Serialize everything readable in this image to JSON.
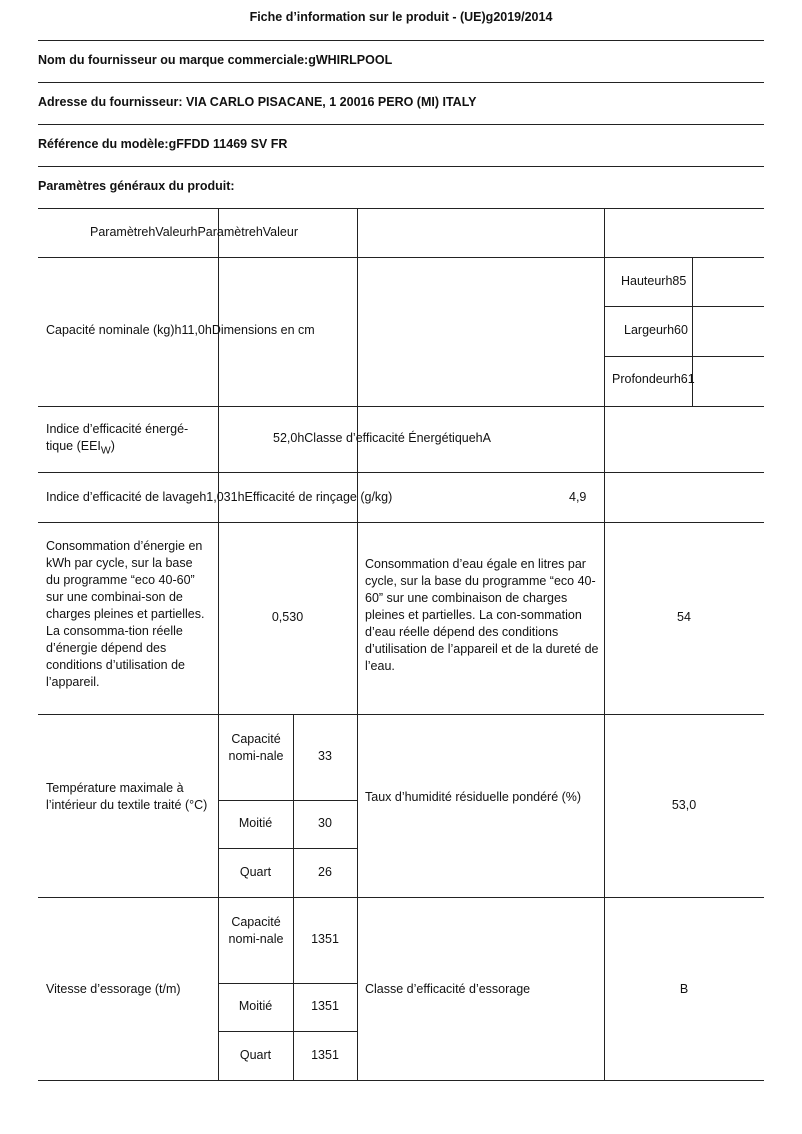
{
  "title": "Fiche d’information sur le produit - (UE)g2019/2014",
  "supplier": "Nom du fournisseur ou marque commerciale:gWHIRLPOOL",
  "address": "Adresse du fournisseur: VIA CARLO PISACANE, 1 20016 PERO (MI) ITALY",
  "model": "Référence du modèle:gFFDD 11469 SV FR",
  "section": "Paramètres généraux du produit:",
  "table": {
    "header": "ParamètrehValeurhParamètrehValeur",
    "capacity": "Capacité nominale (kg)h11,0hDimensions en cm",
    "height": "Hauteurh85",
    "width": "Largeurh60",
    "depth": "Profondeurh61",
    "eei_label": "Indice d’efficacité énergé-tique (EEI",
    "eei_sub": "W",
    "eei_close": ")",
    "eei_value": "52,0hClasse d’efficacité ÉnergétiquehA",
    "wash": "Indice d’efficacité de lavageh1,031hEfficacité de rinçage (g/kg)",
    "rinse_value": "4,9",
    "energy_label": "Consommation d’énergie en kWh par cycle, sur la base du programme “eco 40-60” sur une combinai-son de charges pleines et partielles. La consomma-tion réelle d’énergie dépend des conditions d’utilisation de l’appareil.",
    "energy_value": "0,530",
    "water_label": "Consommation d’eau égale en litres par cycle, sur la base du programme “eco 40-60” sur une combinaison de charges pleines et partielles. La con-sommation d’eau réelle dépend des conditions d’utilisation de l’appareil et de la dureté de l’eau.",
    "water_value": "54",
    "temp_label": "Température maximale à l’intérieur du textile traité (°C)",
    "temp_rows": [
      {
        "label": "Capacité nomi-nale",
        "value": "33"
      },
      {
        "label": "Moitié",
        "value": "30"
      },
      {
        "label": "Quart",
        "value": "26"
      }
    ],
    "humidity_label": "Taux d’humidité résiduelle pondéré (%)",
    "humidity_value": "53,0",
    "spin_label": "Vitesse d’essorage (t/m)",
    "spin_rows": [
      {
        "label": "Capacité nomi-nale",
        "value": "1351"
      },
      {
        "label": "Moitié",
        "value": "1351"
      },
      {
        "label": "Quart",
        "value": "1351"
      }
    ],
    "spin_class_label": "Classe d’efficacité d’essorage",
    "spin_class_value": "B"
  }
}
